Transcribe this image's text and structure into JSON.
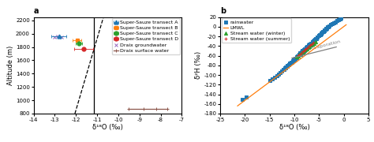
{
  "chart_data": [
    {
      "type": "scatter",
      "title": "a",
      "xlabel": "δ¹⁸O (‰)",
      "ylabel": "Altitude (m)",
      "xlim": [
        -14,
        -7
      ],
      "ylim": [
        800,
        2250
      ],
      "xticks": [
        -14,
        -13,
        -12,
        -11,
        -10,
        -9,
        -8,
        -7
      ],
      "yticks": [
        800,
        1000,
        1200,
        1400,
        1600,
        1800,
        2000,
        2200
      ],
      "legend": "upper right",
      "series": [
        {
          "type": "line",
          "line_style": "solid",
          "color": "black",
          "x": [
            -11.15,
            -11.15
          ],
          "y": [
            800,
            2250
          ]
        },
        {
          "type": "line",
          "line_style": "dashed",
          "color": "black",
          "x": [
            -12.05,
            -10.7
          ],
          "y": [
            800,
            2250
          ]
        },
        {
          "name": "Super-Sauze transect A",
          "type": "scatter",
          "marker": "^",
          "x": [
            -12.8
          ],
          "y": [
            1960
          ],
          "xerr": [
            0.35
          ]
        },
        {
          "name": "Super-Sauze transect B",
          "type": "scatter",
          "marker": "s",
          "x": [
            -11.95
          ],
          "y": [
            1900
          ],
          "xerr": [
            0.2
          ]
        },
        {
          "name": "Super-Sauze transect C",
          "type": "scatter",
          "marker": "o",
          "x": [
            -11.85
          ],
          "y": [
            1850
          ],
          "xerr": [
            0.15
          ]
        },
        {
          "name": "Super-Sauze transect D",
          "type": "scatter",
          "marker": "o",
          "x": [
            -11.65
          ],
          "y": [
            1775
          ],
          "xerr": [
            0.45
          ]
        },
        {
          "name": "Draix groundwater",
          "type": "scatter",
          "marker": "x",
          "x": [
            -13.0,
            -12.85,
            -12.7
          ],
          "y": [
            1950,
            1960,
            1955
          ]
        },
        {
          "name": "Draix surface water",
          "type": "line",
          "line_style": "solid",
          "marker": "+",
          "x": [
            -9.5,
            -8.8,
            -8.2,
            -7.7
          ],
          "y": [
            870,
            870,
            870,
            870
          ]
        }
      ]
    },
    {
      "type": "scatter",
      "title": "b",
      "xlabel": "δ¹⁸O (‰)",
      "ylabel": "δ²H (‰)",
      "xlim": [
        -25,
        5
      ],
      "ylim": [
        -180,
        20
      ],
      "xticks": [
        -25,
        -20,
        -15,
        -10,
        -5,
        0,
        5
      ],
      "yticks": [
        -180,
        -160,
        -140,
        -120,
        -100,
        -80,
        -60,
        -40,
        -20,
        0,
        20
      ],
      "legend": "upper left",
      "annotations": [
        {
          "text": "Evaporation",
          "x": -6.5,
          "y": -48,
          "color": "gray"
        }
      ],
      "series": [
        {
          "name": "rainwater",
          "type": "scatter",
          "marker": "s",
          "x": [
            -20.5,
            -19.8,
            -15.0,
            -14.5,
            -14.0,
            -13.5,
            -13.2,
            -12.9,
            -12.6,
            -12.3,
            -12.0,
            -11.8,
            -11.5,
            -11.2,
            -10.9,
            -10.7,
            -10.4,
            -10.1,
            -9.9,
            -9.6,
            -9.4,
            -9.1,
            -8.9,
            -8.6,
            -8.4,
            -8.1,
            -7.9,
            -7.6,
            -7.4,
            -7.1,
            -6.9,
            -6.6,
            -6.4,
            -6.1,
            -5.9,
            -5.6,
            -5.4,
            -5.1,
            -4.9,
            -4.6,
            -4.4,
            -4.1,
            -3.9,
            -3.6,
            -3.4,
            -3.1,
            -2.9,
            -2.6,
            -2.3,
            -2.0,
            -1.7,
            -1.4,
            -1.1,
            -0.8,
            -0.5,
            -12.1,
            -11.7,
            -11.4,
            -11.1,
            -10.8,
            -10.5,
            -10.2,
            -9.9,
            -9.6,
            -9.3,
            -9.0,
            -8.7,
            -8.4,
            -8.1,
            -7.8,
            -7.5,
            -7.2,
            -6.9,
            -6.6,
            -6.3,
            -6.0,
            -5.7,
            -5.4,
            -5.1,
            -4.8,
            -4.5,
            -4.2,
            -3.9,
            -3.6,
            -3.3,
            -8.8,
            -8.5,
            -8.2,
            -7.9,
            -7.6,
            -7.3,
            -7.0,
            -6.7,
            -6.4,
            -6.1
          ],
          "y": [
            -150,
            -145,
            -112,
            -108,
            -105,
            -101,
            -98,
            -95,
            -92,
            -89,
            -86,
            -84,
            -81,
            -78,
            -75,
            -73,
            -70,
            -68,
            -65,
            -63,
            -60,
            -58,
            -55,
            -53,
            -50,
            -48,
            -46,
            -43,
            -41,
            -38,
            -36,
            -34,
            -31,
            -29,
            -27,
            -24,
            -22,
            -19,
            -17,
            -15,
            -12,
            -10,
            -8,
            -5,
            -3,
            -1,
            2,
            4,
            6,
            8,
            10,
            12,
            14,
            16,
            18,
            -88,
            -85,
            -82,
            -79,
            -76,
            -73,
            -70,
            -67,
            -64,
            -61,
            -58,
            -55,
            -52,
            -49,
            -46,
            -43,
            -40,
            -37,
            -34,
            -31,
            -28,
            -25,
            -22,
            -19,
            -16,
            -13,
            -10,
            -7,
            -4,
            -1,
            -57,
            -54,
            -52,
            -49,
            -46,
            -43,
            -40,
            -37,
            -35,
            -32
          ]
        },
        {
          "name": "LMWL",
          "type": "line",
          "line_style": "solid",
          "x": [
            -21.5,
            0.5
          ],
          "y": [
            -164,
            4
          ]
        },
        {
          "name": "Stream water (winter)",
          "type": "scatter",
          "marker": "^",
          "x": [
            -9.5,
            -9.2,
            -9.0,
            -8.7,
            -8.4,
            -8.1,
            -7.8,
            -7.5,
            -7.2,
            -6.9,
            -6.6,
            -6.3,
            -6.0,
            -5.7
          ],
          "y": [
            -63,
            -61,
            -58,
            -56,
            -53,
            -51,
            -48,
            -46,
            -43,
            -41,
            -38,
            -36,
            -34,
            -31
          ]
        },
        {
          "name": "Stream water (summer)",
          "type": "scatter",
          "marker": "+",
          "x": [
            -9.2,
            -8.9,
            -8.6,
            -8.3,
            -8.0,
            -7.7,
            -7.4,
            -7.1,
            -6.8,
            -6.5,
            -6.2
          ],
          "y": [
            -59,
            -57,
            -54,
            -51,
            -49,
            -46,
            -44,
            -41,
            -38,
            -36,
            -33
          ]
        },
        {
          "type": "line",
          "line_style": "solid",
          "color": "gray",
          "x": [
            -10.5,
            -1.5
          ],
          "y": [
            -65,
            -42
          ]
        }
      ]
    }
  ]
}
